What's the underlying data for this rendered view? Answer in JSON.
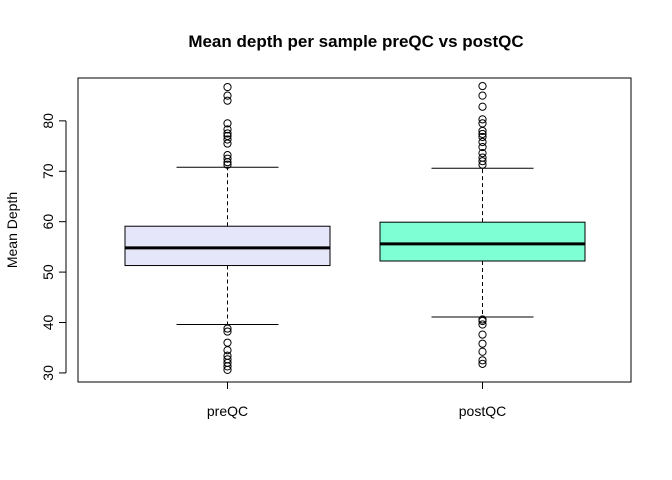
{
  "chart_data": {
    "type": "boxplot",
    "title": "Mean depth per sample preQC vs postQC",
    "xlabel": "",
    "ylabel": "Mean Depth",
    "ylim": [
      28.2,
      88.5
    ],
    "yticks": [
      30,
      40,
      50,
      60,
      70,
      80
    ],
    "grid": false,
    "categories": [
      "preQC",
      "postQC"
    ],
    "series": [
      {
        "category": "preQC",
        "fill": "#E6E6FA",
        "whisker_low": 39.6,
        "q1": 51.3,
        "median": 54.8,
        "q3": 59.1,
        "whisker_high": 70.8,
        "outliers": [
          30.6,
          31.3,
          32.0,
          32.7,
          33.4,
          34.5,
          36.0,
          38.2,
          38.8,
          71.3,
          71.8,
          72.5,
          73.2,
          75.5,
          76.3,
          77.0,
          77.5,
          78.3,
          79.5,
          84.0,
          85.0,
          86.7
        ]
      },
      {
        "category": "postQC",
        "fill": "#7FFFD4",
        "whisker_low": 41.1,
        "q1": 52.2,
        "median": 55.6,
        "q3": 59.9,
        "whisker_high": 70.6,
        "outliers": [
          31.8,
          32.5,
          34.2,
          35.8,
          37.6,
          39.6,
          40.3,
          40.6,
          71.3,
          72.0,
          72.7,
          73.6,
          74.8,
          75.8,
          76.8,
          77.4,
          78.0,
          79.5,
          80.3,
          82.8,
          85.0,
          86.9
        ]
      }
    ]
  }
}
